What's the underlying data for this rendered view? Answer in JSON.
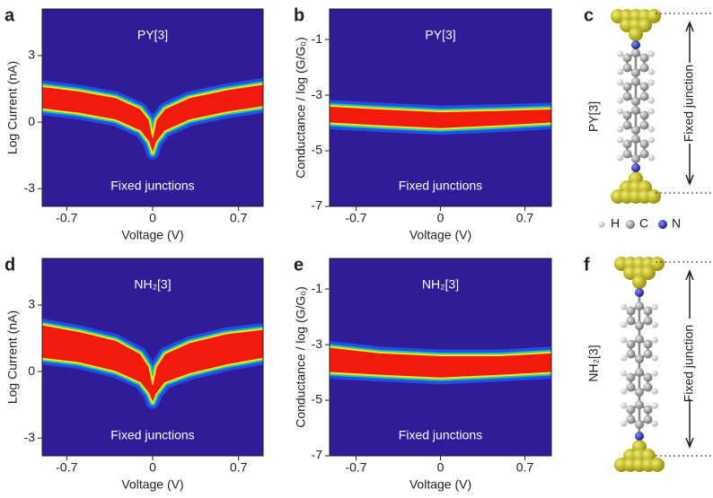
{
  "chart_data": [
    {
      "type": "density",
      "panel": "a",
      "title": "PY[3]",
      "annotation": "Fixed junctions",
      "xlabel": "Voltage (V)",
      "ylabel": "Log Current (nA)",
      "xlim": [
        -0.9,
        0.9
      ],
      "ylim": [
        -3.8,
        5.1
      ],
      "xticks": [
        -0.7,
        0,
        0.7
      ],
      "yticks": [
        -3,
        0,
        3
      ],
      "x": [
        -0.9,
        -0.6,
        -0.3,
        -0.1,
        -0.03,
        0,
        0.03,
        0.1,
        0.3,
        0.6,
        0.9
      ],
      "upper": [
        1.6,
        1.4,
        1.1,
        0.6,
        0.1,
        -0.7,
        0.1,
        0.6,
        1.1,
        1.45,
        1.7
      ],
      "lower": [
        0.6,
        0.4,
        0.1,
        -0.4,
        -0.9,
        -1.4,
        -0.9,
        -0.4,
        0.1,
        0.45,
        0.7
      ]
    },
    {
      "type": "density",
      "panel": "b",
      "title": "PY[3]",
      "annotation": "Fixed junctions",
      "xlabel": "Voltage (V)",
      "ylabel": "Conductance / log (G/G₀)",
      "xlim": [
        -0.92,
        0.92
      ],
      "ylim": [
        -7,
        0.1
      ],
      "xticks": [
        -0.7,
        0,
        0.7
      ],
      "yticks": [
        -7,
        -5,
        -3,
        -1
      ],
      "x": [
        -0.92,
        -0.5,
        0,
        0.5,
        0.92
      ],
      "upper": [
        -3.4,
        -3.5,
        -3.6,
        -3.55,
        -3.5
      ],
      "lower": [
        -4.0,
        -4.1,
        -4.2,
        -4.1,
        -4.0
      ]
    },
    {
      "type": "density",
      "panel": "d",
      "title": "NH₂[3]",
      "annotation": "Fixed junctions",
      "xlabel": "Voltage (V)",
      "ylabel": "Log Current (nA)",
      "xlim": [
        -0.9,
        0.9
      ],
      "ylim": [
        -3.8,
        5.1
      ],
      "xticks": [
        -0.7,
        0,
        0.7
      ],
      "yticks": [
        -3,
        0,
        3
      ],
      "x": [
        -0.9,
        -0.6,
        -0.3,
        -0.1,
        -0.03,
        0,
        0.03,
        0.1,
        0.3,
        0.6,
        0.9
      ],
      "upper": [
        2.1,
        1.8,
        1.4,
        0.8,
        0.2,
        -0.6,
        0.2,
        0.8,
        1.3,
        1.7,
        1.9
      ],
      "lower": [
        0.6,
        0.4,
        0.0,
        -0.5,
        -1.0,
        -1.4,
        -1.0,
        -0.5,
        -0.1,
        0.3,
        0.6
      ]
    },
    {
      "type": "density",
      "panel": "e",
      "title": "NH₂[3]",
      "annotation": "Fixed junctions",
      "xlabel": "Voltage (V)",
      "ylabel": "Conductance / log (G/G₀)",
      "xlim": [
        -0.92,
        0.92
      ],
      "ylim": [
        -7,
        0.1
      ],
      "xticks": [
        -0.7,
        0,
        0.7
      ],
      "yticks": [
        -7,
        -5,
        -3,
        -1
      ],
      "x": [
        -0.92,
        -0.5,
        0,
        0.5,
        0.92
      ],
      "upper": [
        -3.1,
        -3.3,
        -3.4,
        -3.4,
        -3.3
      ],
      "lower": [
        -4.0,
        -4.1,
        -4.2,
        -4.1,
        -4.0
      ]
    }
  ],
  "diagrams": [
    {
      "panel": "c",
      "molecule": "PY[3]",
      "junction": "Fixed junction",
      "legend": [
        "H",
        "C",
        "N"
      ]
    },
    {
      "panel": "f",
      "molecule": "NH₂[3]",
      "junction": "Fixed junction"
    }
  ]
}
